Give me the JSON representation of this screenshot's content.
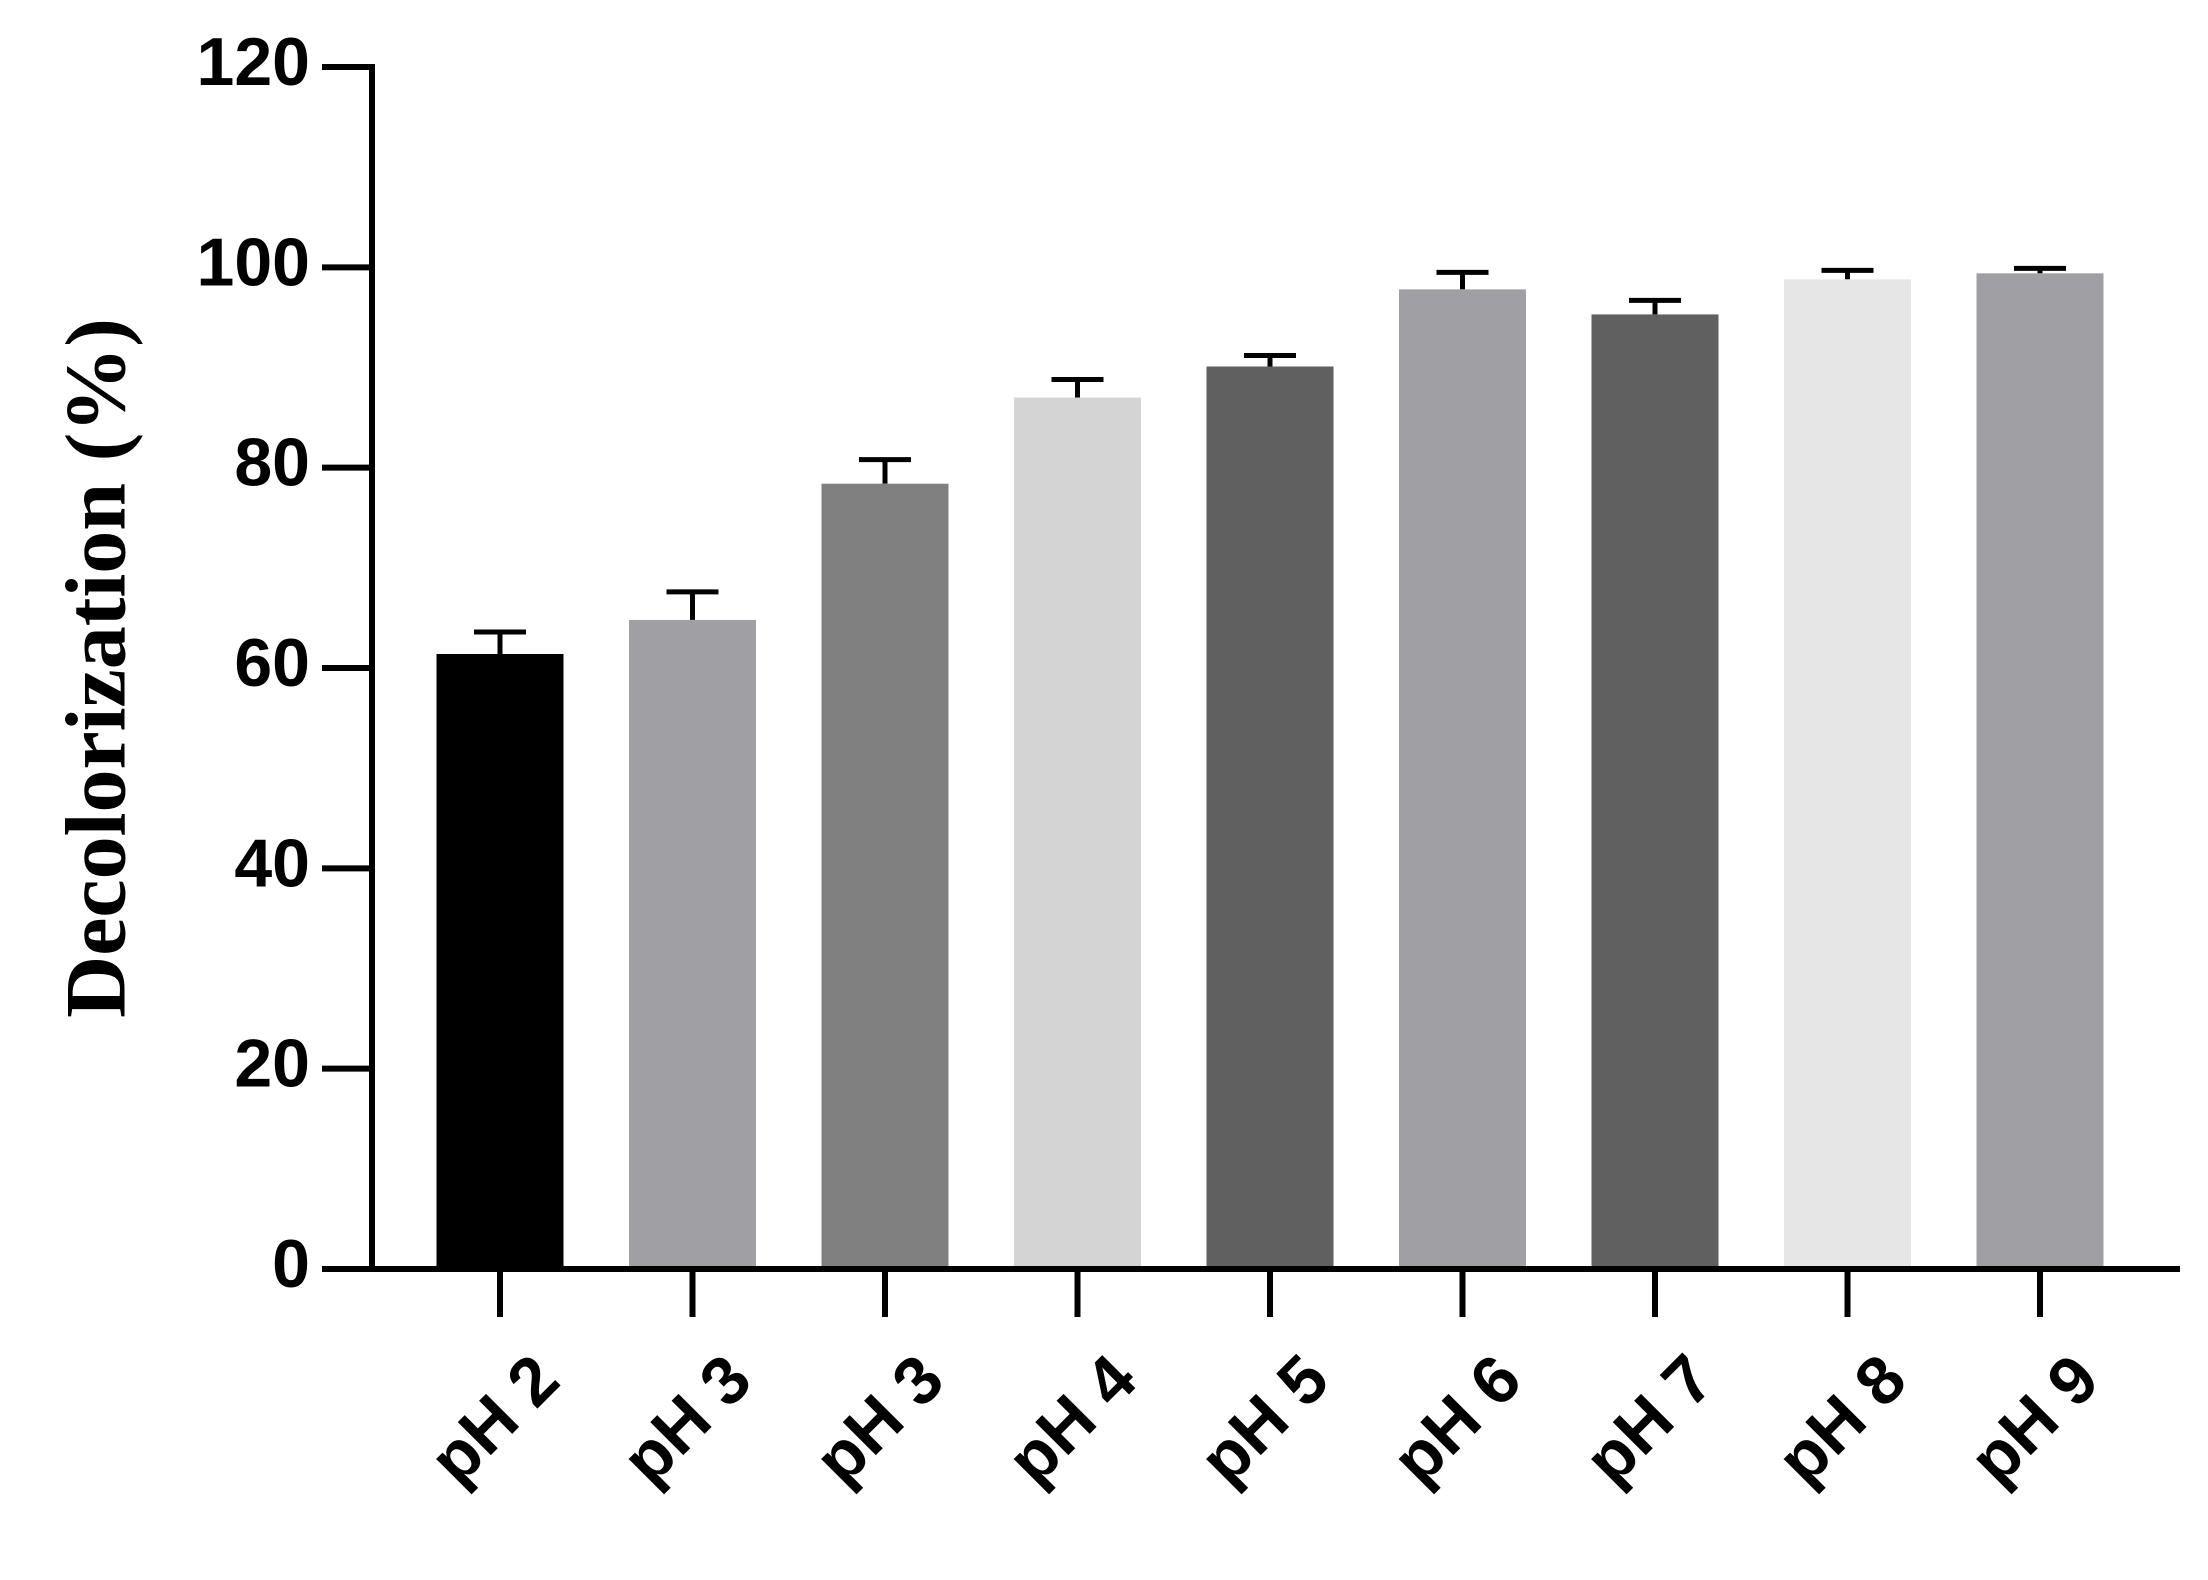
{
  "chart_data": {
    "type": "bar",
    "y_label": "Decolorization (%)",
    "categories": [
      "pH 2",
      "pH 3",
      "pH 3",
      "pH 4",
      "pH 5",
      "pH 6",
      "pH 7",
      "pH 8",
      "pH 9"
    ],
    "values": [
      61.4,
      64.8,
      78.4,
      87.0,
      90.1,
      97.8,
      95.3,
      98.8,
      99.4
    ],
    "errors": [
      2.2,
      2.8,
      2.4,
      1.8,
      1.1,
      1.7,
      1.4,
      0.9,
      0.5
    ],
    "colors": [
      "#000000",
      "#a0a0a4",
      "#808080",
      "#d4d4d4",
      "#606060",
      "#a0a0a4",
      "#606060",
      "#e6e6e6",
      "#a0a0a4"
    ],
    "ylim": [
      0,
      120
    ],
    "yticks": [
      0,
      20,
      40,
      60,
      80,
      100,
      120
    ],
    "grid": false
  }
}
